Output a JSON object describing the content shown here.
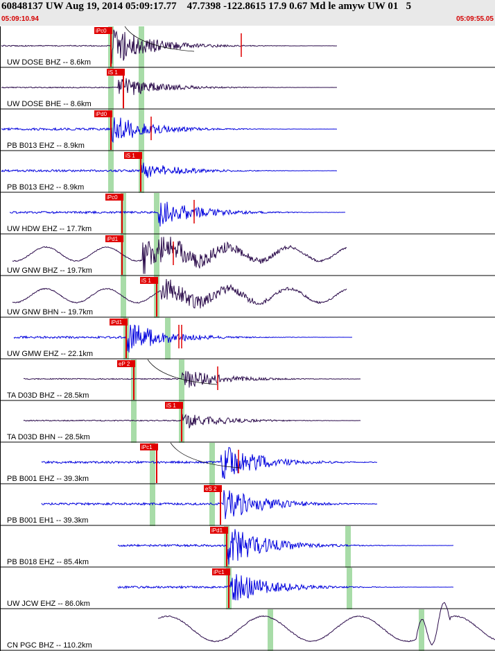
{
  "header": {
    "title": "60848137 UW Aug 19, 2014 05:09:17.77    47.7398 -122.8615 17.9 0.67 Md le amyw UW 01   5",
    "time_start": "05:09:10.94",
    "time_end": "05:09:55.05"
  },
  "colors": {
    "blue_trace": "#0000dd",
    "purple_trace": "#2a0a4a",
    "pick_red": "#e00000",
    "window_green": "#a8dca8"
  },
  "panels": [
    {
      "label": "UW DOSE BHZ -- 8.6km",
      "color": "purple",
      "pick": "iPc0"
    },
    {
      "label": "UW DOSE BHE -- 8.6km",
      "color": "purple",
      "pick": "iS 1"
    },
    {
      "label": "PB B013 EHZ -- 8.9km",
      "color": "blue",
      "pick": "iPd0"
    },
    {
      "label": "PB B013 EH2 -- 8.9km",
      "color": "blue",
      "pick": "iS 1"
    },
    {
      "label": "UW HDW EHZ -- 17.7km",
      "color": "blue",
      "pick": "iPc0"
    },
    {
      "label": "UW GNW BHZ -- 19.7km",
      "color": "purple",
      "pick": "iPd1"
    },
    {
      "label": "UW GNW BHN -- 19.7km",
      "color": "purple",
      "pick": "iS 1"
    },
    {
      "label": "UW GMW EHZ -- 22.1km",
      "color": "blue",
      "pick": "iPd1"
    },
    {
      "label": "TA D03D BHZ -- 28.5km",
      "color": "purple",
      "pick": "eP 2"
    },
    {
      "label": "TA D03D BHN -- 28.5km",
      "color": "purple",
      "pick": "iS 1"
    },
    {
      "label": "PB B001 EHZ -- 39.3km",
      "color": "blue",
      "pick": "iPc1"
    },
    {
      "label": "PB B001 EH1 -- 39.3km",
      "color": "blue",
      "pick": "eS 2"
    },
    {
      "label": "PB B018 EHZ -- 85.4km",
      "color": "blue",
      "pick": "iPd1"
    },
    {
      "label": "UW JCW EHZ -- 86.0km",
      "color": "blue",
      "pick": "iPc1"
    },
    {
      "label": "CN PGC BHZ -- 110.2km",
      "color": "purple",
      "pick": ""
    }
  ]
}
